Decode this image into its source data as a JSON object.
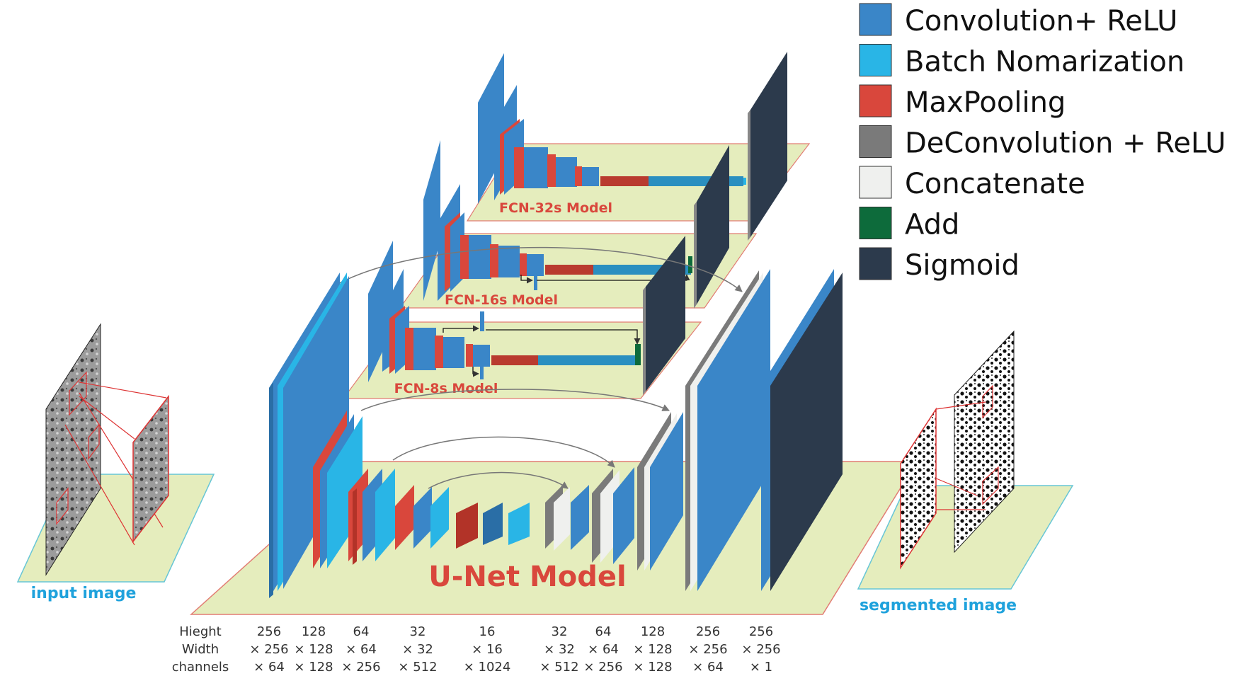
{
  "legend": [
    {
      "label": "Convolution+ ReLU",
      "color": "#3a86c8"
    },
    {
      "label": "Batch Nomarization",
      "color": "#29b5e6"
    },
    {
      "label": "MaxPooling",
      "color": "#d9473c"
    },
    {
      "label": "DeConvolution + ReLU",
      "color": "#7a7a7a"
    },
    {
      "label": "Concatenate",
      "color": "#eff0ee"
    },
    {
      "label": "Add",
      "color": "#0d6b3b"
    },
    {
      "label": "Sigmoid",
      "color": "#2c3a4c"
    }
  ],
  "models": {
    "fcn32": "FCN-32s Model",
    "fcn16": "FCN-16s Model",
    "fcn8": "FCN-8s Model",
    "unet": "U-Net Model"
  },
  "captions": {
    "input": "input image",
    "output": "segmented image"
  },
  "dimension_table": {
    "row_labels": [
      "Hieght",
      "Width",
      "channels"
    ],
    "columns": [
      [
        "256",
        "× 256",
        "× 64"
      ],
      [
        "128",
        "× 128",
        "× 128"
      ],
      [
        "64",
        "× 64",
        "× 256"
      ],
      [
        "32",
        "× 32",
        "× 512"
      ],
      [
        "16",
        "× 16",
        "× 1024"
      ],
      [
        "32",
        "× 32",
        "× 512"
      ],
      [
        "64",
        "× 64",
        "× 256"
      ],
      [
        "128",
        "× 128",
        "× 128"
      ],
      [
        "256",
        "× 256",
        "× 64"
      ],
      [
        "256",
        "× 256",
        "× 1"
      ]
    ]
  },
  "colors": {
    "platform_fill": "#e5edbd",
    "platform_edge_red": "#e27d74",
    "platform_edge_cyan": "#67c6d6",
    "model_label": "#d9473c",
    "caption": "#1fa2dc"
  }
}
